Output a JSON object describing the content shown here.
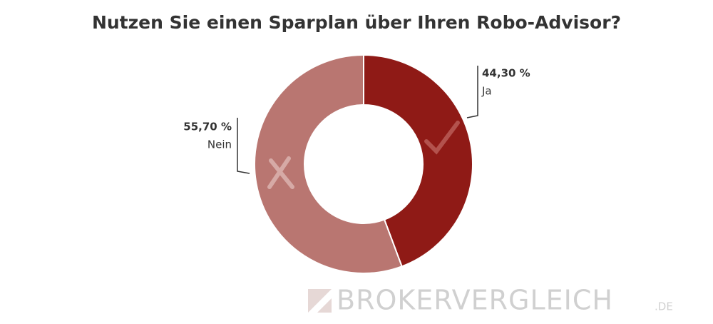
{
  "chart_data": {
    "type": "donut",
    "title": "Nutzen Sie einen Sparplan über Ihren Robo-Advisor?",
    "categories": [
      "Ja",
      "Nein"
    ],
    "values": [
      44.3,
      55.7
    ],
    "value_labels": [
      "44,30 %",
      "55,70 %"
    ],
    "colors": [
      "#8f1a16",
      "#b97671"
    ]
  },
  "watermark": {
    "brand": "BrokerVergleich",
    "suffix": ".de"
  }
}
